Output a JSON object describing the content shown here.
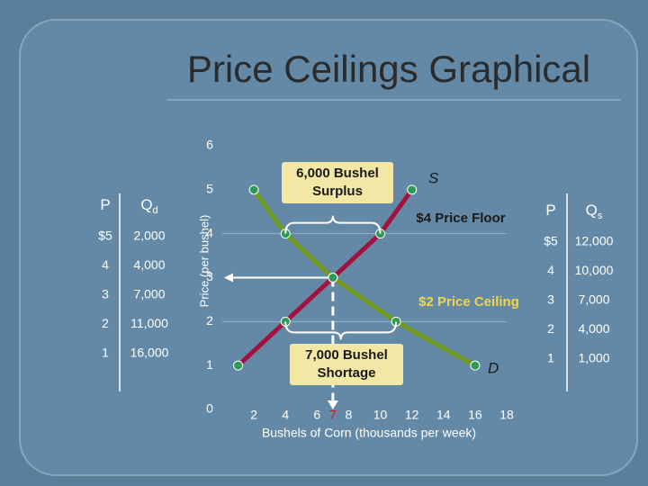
{
  "title": "Price Ceilings Graphical",
  "demand_table": {
    "headers": [
      {
        "text": "P"
      },
      {
        "text": "Q",
        "sub": "d"
      }
    ],
    "rows": [
      [
        "$5",
        "2,000"
      ],
      [
        "4",
        "4,000"
      ],
      [
        "3",
        "7,000"
      ],
      [
        "2",
        "11,000"
      ],
      [
        "1",
        "16,000"
      ]
    ]
  },
  "supply_table": {
    "headers": [
      {
        "text": "P"
      },
      {
        "text": "Q",
        "sub": "s"
      }
    ],
    "rows": [
      [
        "$5",
        "12,000"
      ],
      [
        "4",
        "10,000"
      ],
      [
        "3",
        "7,000"
      ],
      [
        "2",
        "4,000"
      ],
      [
        "1",
        "1,000"
      ]
    ]
  },
  "chart_data": {
    "type": "line",
    "y_label": "Price (per bushel)",
    "x_label": "Bushels of Corn (thousands per week)",
    "xlim": [
      0,
      18
    ],
    "xticks": [
      2,
      4,
      6,
      7,
      8,
      10,
      12,
      14,
      16,
      18
    ],
    "ylim": [
      0,
      6
    ],
    "yticks": [
      0,
      1,
      2,
      3,
      4,
      5,
      6
    ],
    "series": [
      {
        "name": "S",
        "color": "#a3123f",
        "x": [
          1,
          4,
          7,
          10,
          12
        ],
        "values": [
          1,
          2,
          3,
          4,
          5
        ]
      },
      {
        "name": "D",
        "color": "#6f9a1c",
        "x": [
          2,
          4,
          7,
          11,
          16
        ],
        "values": [
          5,
          4,
          3,
          2,
          1
        ]
      }
    ],
    "point_color": "#2f9a55",
    "equilibrium": {
      "x": 7,
      "y": 3,
      "color": "#d01818"
    },
    "price_floor": {
      "label": "$4 Price Floor",
      "value": 4,
      "color": "#1a1a1a"
    },
    "price_ceiling": {
      "label": "$2 Price Ceiling",
      "value": 2,
      "color": "#f2d64a"
    },
    "surplus_note": [
      "6,000 Bushel",
      "Surplus"
    ],
    "shortage_note": [
      "7,000 Bushel",
      "Shortage"
    ]
  }
}
